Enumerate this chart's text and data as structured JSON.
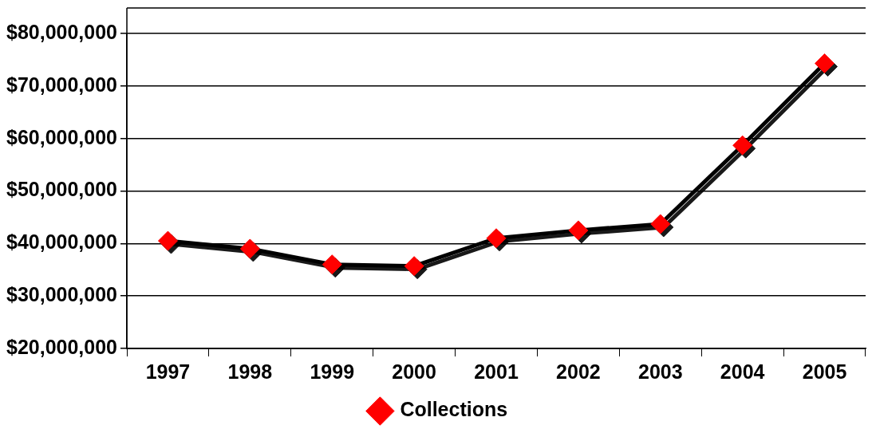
{
  "chart_data": {
    "type": "line",
    "categories": [
      "1997",
      "1998",
      "1999",
      "2000",
      "2001",
      "2002",
      "2003",
      "2004",
      "2005"
    ],
    "series": [
      {
        "name": "Collections",
        "color": "#000000",
        "values": [
          40500000,
          39000000,
          36000000,
          35700000,
          41000000,
          42500000,
          43700000,
          58700000,
          74300000
        ],
        "colors": [
          "#ff0000",
          "#ff0000",
          "#ff0000",
          "#ff0000",
          "#ff0000",
          "#ff0000",
          "#ff0000",
          "#ff0000",
          "#ff0000"
        ]
      }
    ],
    "marker": "diamond",
    "ylim": [
      20000000,
      80000000
    ],
    "yticks": [
      {
        "value": 20000000,
        "label": "$20,000,000"
      },
      {
        "value": 30000000,
        "label": "$30,000,000"
      },
      {
        "value": 40000000,
        "label": "$40,000,000"
      },
      {
        "value": 50000000,
        "label": "$50,000,000"
      },
      {
        "value": 60000000,
        "label": "$60,000,000"
      },
      {
        "value": 70000000,
        "label": "$70,000,000"
      },
      {
        "value": 80000000,
        "label": "$80,000,000"
      }
    ],
    "grid": "y",
    "legend": "bottom"
  }
}
